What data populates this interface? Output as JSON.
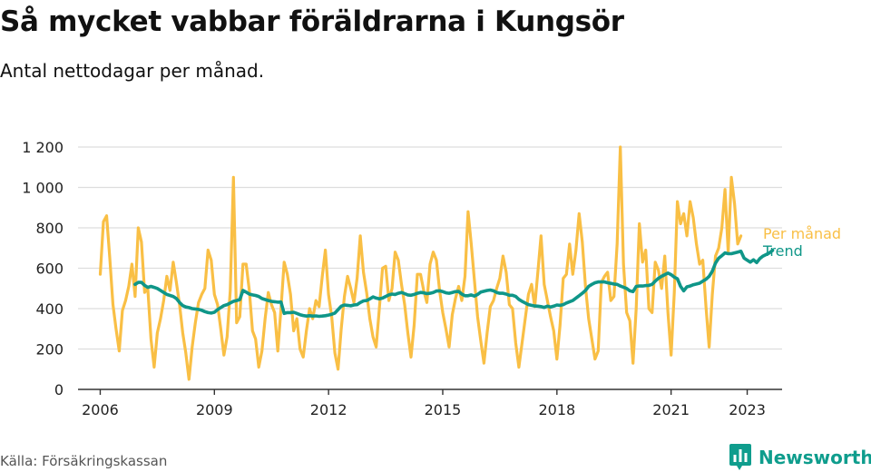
{
  "header": {
    "title": "Så mycket vabbar föräldrarna i Kungsör",
    "subtitle": "Antal nettodagar per månad."
  },
  "footer": {
    "source": "Källa: Försäkringskassan",
    "brand": "Newsworthy"
  },
  "colors": {
    "per_month": "#f9bf45",
    "trend": "#0f9688",
    "grid": "#dddddd",
    "axis": "#333333",
    "brand": "#0f9d8d"
  },
  "icons": {
    "brand_logo": "bar-chart-speech-bubble-icon"
  },
  "chart_data": {
    "type": "line",
    "title": "Så mycket vabbar föräldrarna i Kungsör",
    "subtitle": "Antal nettodagar per månad.",
    "xlabel": "",
    "ylabel": "",
    "xlim": [
      "2005-06",
      "2023-12"
    ],
    "ylim": [
      0,
      1200
    ],
    "y_ticks": [
      0,
      200,
      400,
      600,
      800,
      1000,
      1200
    ],
    "y_tick_labels": [
      "0",
      "200",
      "400",
      "600",
      "800",
      "1 000",
      "1 200"
    ],
    "x_ticks": [
      2006,
      2009,
      2012,
      2015,
      2018,
      2021,
      2023
    ],
    "grid": true,
    "legend": "right-end-labels",
    "series": [
      {
        "name": "Per månad",
        "color": "#f9bf45",
        "start": "2006-01",
        "frequency": "monthly",
        "values": [
          570,
          830,
          860,
          650,
          420,
          300,
          190,
          390,
          440,
          510,
          620,
          460,
          800,
          730,
          480,
          500,
          250,
          110,
          280,
          350,
          440,
          560,
          490,
          630,
          530,
          420,
          280,
          180,
          50,
          210,
          330,
          430,
          470,
          500,
          690,
          640,
          470,
          420,
          300,
          170,
          260,
          490,
          1050,
          330,
          360,
          620,
          620,
          490,
          290,
          250,
          110,
          190,
          350,
          480,
          420,
          380,
          190,
          400,
          630,
          570,
          470,
          290,
          350,
          200,
          160,
          290,
          400,
          350,
          440,
          410,
          560,
          690,
          470,
          360,
          180,
          100,
          300,
          460,
          560,
          500,
          430,
          550,
          760,
          580,
          480,
          350,
          260,
          210,
          400,
          600,
          610,
          440,
          500,
          680,
          640,
          520,
          420,
          280,
          160,
          320,
          570,
          570,
          490,
          430,
          620,
          680,
          640,
          490,
          380,
          300,
          210,
          370,
          450,
          510,
          440,
          560,
          880,
          720,
          540,
          360,
          240,
          130,
          280,
          410,
          440,
          500,
          550,
          660,
          580,
          420,
          400,
          230,
          110,
          230,
          350,
          470,
          520,
          410,
          580,
          760,
          520,
          440,
          360,
          290,
          150,
          320,
          550,
          570,
          720,
          570,
          690,
          870,
          730,
          510,
          350,
          250,
          150,
          190,
          530,
          560,
          580,
          440,
          460,
          720,
          1200,
          620,
          380,
          340,
          130,
          400,
          820,
          630,
          690,
          400,
          380,
          630,
          590,
          500,
          660,
          380,
          170,
          480,
          930,
          820,
          870,
          760,
          930,
          850,
          720,
          620,
          640,
          410,
          210,
          470,
          660,
          700,
          800,
          990,
          680,
          1050,
          920,
          720,
          760
        ]
      },
      {
        "name": "Trend",
        "color": "#0f9688",
        "start": "2006-01",
        "frequency": "monthly",
        "values": [
          null,
          null,
          null,
          null,
          null,
          null,
          null,
          null,
          null,
          null,
          null,
          520,
          530,
          530,
          515,
          505,
          510,
          505,
          500,
          490,
          480,
          470,
          465,
          460,
          450,
          430,
          415,
          408,
          405,
          400,
          398,
          396,
          392,
          385,
          380,
          378,
          382,
          395,
          405,
          415,
          420,
          428,
          436,
          440,
          445,
          490,
          482,
          472,
          468,
          465,
          460,
          450,
          445,
          440,
          436,
          434,
          432,
          433,
          376,
          380,
          380,
          382,
          376,
          370,
          366,
          363,
          365,
          363,
          364,
          362,
          363,
          365,
          368,
          372,
          378,
          395,
          412,
          418,
          416,
          414,
          418,
          420,
          430,
          438,
          440,
          448,
          458,
          452,
          448,
          452,
          460,
          468,
          472,
          470,
          476,
          480,
          474,
          468,
          466,
          470,
          476,
          480,
          478,
          474,
          476,
          480,
          487,
          488,
          484,
          478,
          476,
          480,
          484,
          485,
          472,
          464,
          464,
          468,
          462,
          470,
          482,
          486,
          490,
          492,
          488,
          480,
          476,
          476,
          472,
          466,
          466,
          460,
          446,
          436,
          428,
          420,
          416,
          413,
          412,
          410,
          406,
          412,
          408,
          412,
          418,
          416,
          420,
          428,
          434,
          440,
          452,
          464,
          476,
          490,
          510,
          520,
          528,
          532,
          532,
          532,
          528,
          525,
          522,
          520,
          512,
          506,
          500,
          488,
          484,
          510,
          512,
          512,
          514,
          515,
          520,
          536,
          550,
          560,
          568,
          576,
          568,
          556,
          548,
          510,
          488,
          508,
          512,
          518,
          522,
          526,
          536,
          545,
          560,
          585,
          625,
          650,
          662,
          676,
          672,
          672,
          676,
          680,
          684,
          650,
          640,
          630,
          642,
          628,
          648,
          660,
          668,
          676,
          688
        ]
      }
    ]
  }
}
